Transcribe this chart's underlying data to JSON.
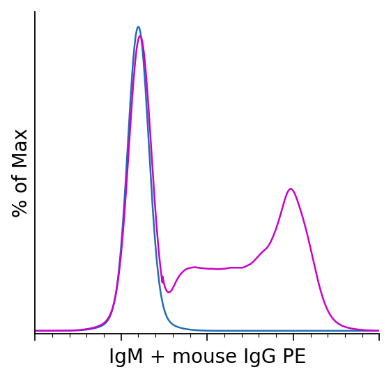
{
  "title": "",
  "xlabel": "IgM + mouse IgG PE",
  "ylabel": "% of Max",
  "xlabel_fontsize": 20,
  "ylabel_fontsize": 20,
  "background_color": "#ffffff",
  "line1_color": "#1e6eb5",
  "line2_color": "#cc00cc",
  "linewidth": 1.8,
  "xlim": [
    0,
    1
  ],
  "ylim": [
    -0.01,
    1.05
  ],
  "figsize": [
    5.61,
    5.44
  ],
  "dpi": 100
}
